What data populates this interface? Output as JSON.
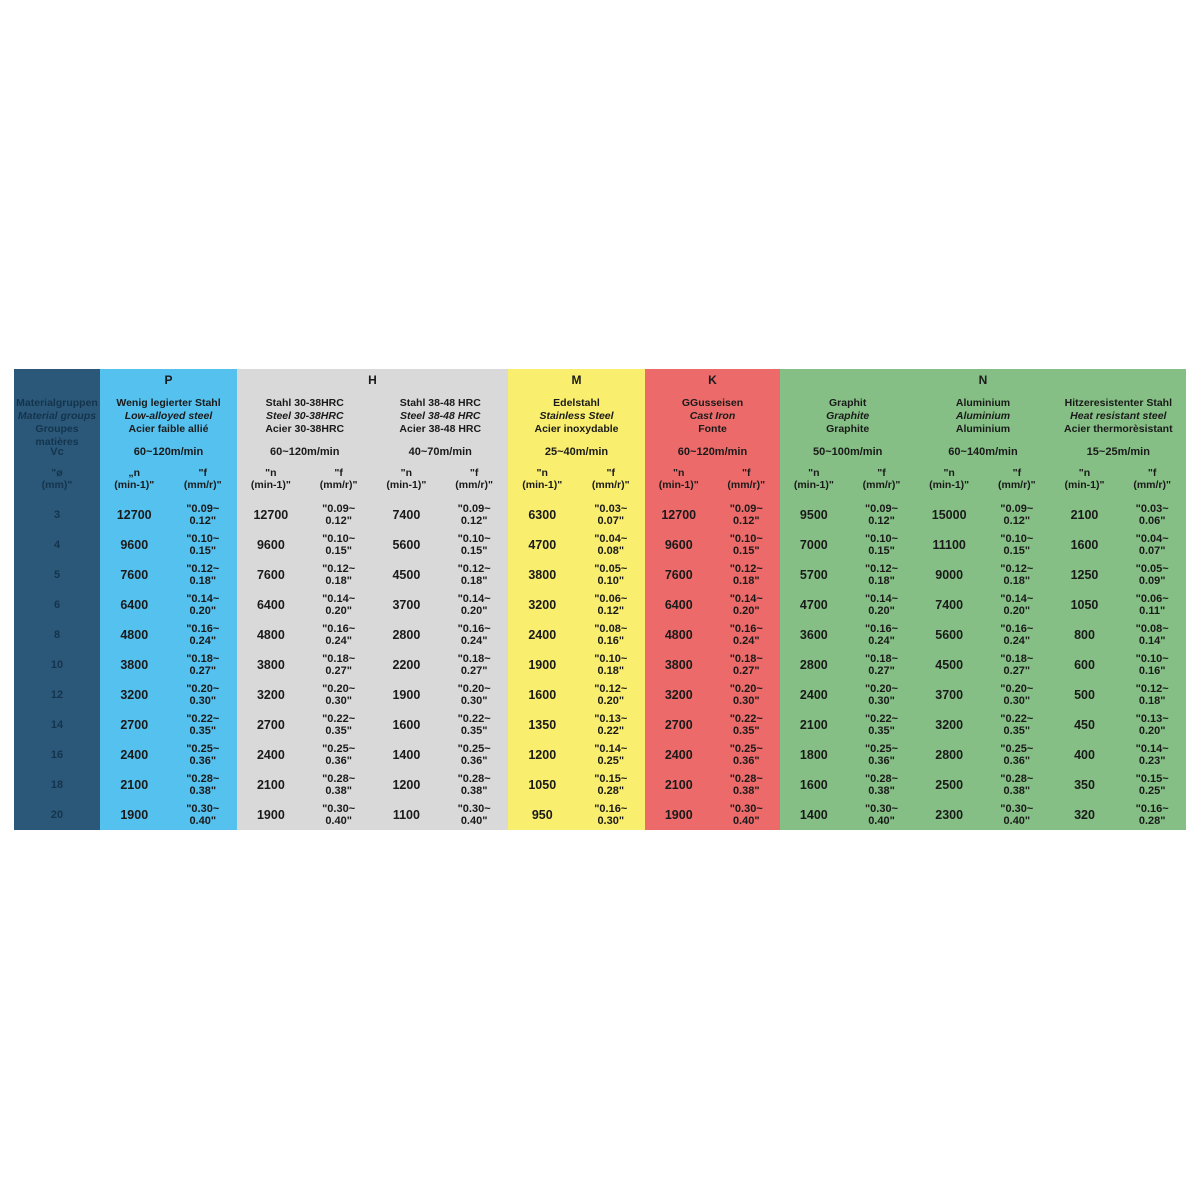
{
  "colors": {
    "navy": "#2b5878",
    "navy_text": "#14344e",
    "blue": "#55c1ef",
    "gray": "#d9d9d9",
    "yellow": "#f9ee6d",
    "red": "#ec6a6a",
    "green": "#85bf85",
    "text": "#1a1a1a"
  },
  "corner": {
    "title_lines": [
      "Materialgruppen",
      "Material groups",
      "Groupes matières"
    ],
    "vc_label": "Vc",
    "diameter_header_line1": "\"ø",
    "diameter_header_line2": "(mm)\"",
    "diameters": [
      "3",
      "4",
      "5",
      "6",
      "8",
      "10",
      "12",
      "14",
      "16",
      "18",
      "20"
    ]
  },
  "groups": [
    {
      "letter": "P",
      "bg": "#55c1ef",
      "materials": [
        {
          "names": [
            "Wenig legierter Stahl",
            "Low-alloyed steel",
            "Acier faible allié"
          ],
          "vc": "60~120m/min",
          "n_header": [
            "„n",
            "(min-1)\""
          ],
          "f_header": [
            "\"f",
            "(mm/r)\""
          ],
          "n": [
            "12700",
            "9600",
            "7600",
            "6400",
            "4800",
            "3800",
            "3200",
            "2700",
            "2400",
            "2100",
            "1900"
          ],
          "f": [
            [
              "\"0.09~",
              "0.12\""
            ],
            [
              "\"0.10~",
              "0.15\""
            ],
            [
              "\"0.12~",
              "0.18\""
            ],
            [
              "\"0.14~",
              "0.20\""
            ],
            [
              "\"0.16~",
              "0.24\""
            ],
            [
              "\"0.18~",
              "0.27\""
            ],
            [
              "\"0.20~",
              "0.30\""
            ],
            [
              "\"0.22~",
              "0.35\""
            ],
            [
              "\"0.25~",
              "0.36\""
            ],
            [
              "\"0.28~",
              "0.38\""
            ],
            [
              "\"0.30~",
              "0.40\""
            ]
          ]
        }
      ]
    },
    {
      "letter": "H",
      "bg": "#d9d9d9",
      "materials": [
        {
          "names": [
            "Stahl 30-38HRC",
            "Steel 30-38HRC",
            "Acier 30-38HRC"
          ],
          "vc": "60~120m/min",
          "n_header": [
            "\"n",
            "(min-1)\""
          ],
          "f_header": [
            "\"f",
            "(mm/r)\""
          ],
          "n": [
            "12700",
            "9600",
            "7600",
            "6400",
            "4800",
            "3800",
            "3200",
            "2700",
            "2400",
            "2100",
            "1900"
          ],
          "f": [
            [
              "\"0.09~",
              "0.12\""
            ],
            [
              "\"0.10~",
              "0.15\""
            ],
            [
              "\"0.12~",
              "0.18\""
            ],
            [
              "\"0.14~",
              "0.20\""
            ],
            [
              "\"0.16~",
              "0.24\""
            ],
            [
              "\"0.18~",
              "0.27\""
            ],
            [
              "\"0.20~",
              "0.30\""
            ],
            [
              "\"0.22~",
              "0.35\""
            ],
            [
              "\"0.25~",
              "0.36\""
            ],
            [
              "\"0.28~",
              "0.38\""
            ],
            [
              "\"0.30~",
              "0.40\""
            ]
          ]
        },
        {
          "names": [
            "Stahl 38-48 HRC",
            "Steel 38-48 HRC",
            "Acier 38-48 HRC"
          ],
          "vc": "40~70m/min",
          "n_header": [
            "\"n",
            "(min-1)\""
          ],
          "f_header": [
            "\"f",
            "(mm/r)\""
          ],
          "n": [
            "7400",
            "5600",
            "4500",
            "3700",
            "2800",
            "2200",
            "1900",
            "1600",
            "1400",
            "1200",
            "1100"
          ],
          "f": [
            [
              "\"0.09~",
              "0.12\""
            ],
            [
              "\"0.10~",
              "0.15\""
            ],
            [
              "\"0.12~",
              "0.18\""
            ],
            [
              "\"0.14~",
              "0.20\""
            ],
            [
              "\"0.16~",
              "0.24\""
            ],
            [
              "\"0.18~",
              "0.27\""
            ],
            [
              "\"0.20~",
              "0.30\""
            ],
            [
              "\"0.22~",
              "0.35\""
            ],
            [
              "\"0.25~",
              "0.36\""
            ],
            [
              "\"0.28~",
              "0.38\""
            ],
            [
              "\"0.30~",
              "0.40\""
            ]
          ]
        }
      ]
    },
    {
      "letter": "M",
      "bg": "#f9ee6d",
      "materials": [
        {
          "names": [
            "Edelstahl",
            "Stainless Steel",
            "Acier inoxydable"
          ],
          "vc": "25~40m/min",
          "n_header": [
            "\"n",
            "(min-1)\""
          ],
          "f_header": [
            "\"f",
            "(mm/r)\""
          ],
          "n": [
            "6300",
            "4700",
            "3800",
            "3200",
            "2400",
            "1900",
            "1600",
            "1350",
            "1200",
            "1050",
            "950"
          ],
          "f": [
            [
              "\"0.03~",
              "0.07\""
            ],
            [
              "\"0.04~",
              "0.08\""
            ],
            [
              "\"0.05~",
              "0.10\""
            ],
            [
              "\"0.06~",
              "0.12\""
            ],
            [
              "\"0.08~",
              "0.16\""
            ],
            [
              "\"0.10~",
              "0.18\""
            ],
            [
              "\"0.12~",
              "0.20\""
            ],
            [
              "\"0.13~",
              "0.22\""
            ],
            [
              "\"0.14~",
              "0.25\""
            ],
            [
              "\"0.15~",
              "0.28\""
            ],
            [
              "\"0.16~",
              "0.30\""
            ]
          ]
        }
      ]
    },
    {
      "letter": "K",
      "bg": "#ec6a6a",
      "materials": [
        {
          "names": [
            "GGusseisen",
            "Cast Iron",
            "Fonte"
          ],
          "vc": "60~120m/min",
          "n_header": [
            "\"n",
            "(min-1)\""
          ],
          "f_header": [
            "\"f",
            "(mm/r)\""
          ],
          "n": [
            "12700",
            "9600",
            "7600",
            "6400",
            "4800",
            "3800",
            "3200",
            "2700",
            "2400",
            "2100",
            "1900"
          ],
          "f": [
            [
              "\"0.09~",
              "0.12\""
            ],
            [
              "\"0.10~",
              "0.15\""
            ],
            [
              "\"0.12~",
              "0.18\""
            ],
            [
              "\"0.14~",
              "0.20\""
            ],
            [
              "\"0.16~",
              "0.24\""
            ],
            [
              "\"0.18~",
              "0.27\""
            ],
            [
              "\"0.20~",
              "0.30\""
            ],
            [
              "\"0.22~",
              "0.35\""
            ],
            [
              "\"0.25~",
              "0.36\""
            ],
            [
              "\"0.28~",
              "0.38\""
            ],
            [
              "\"0.30~",
              "0.40\""
            ]
          ]
        }
      ]
    },
    {
      "letter": "N",
      "bg": "#85bf85",
      "materials": [
        {
          "names": [
            "Graphit",
            "Graphite",
            "Graphite"
          ],
          "vc": "50~100m/min",
          "n_header": [
            "\"n",
            "(min-1)\""
          ],
          "f_header": [
            "\"f",
            "(mm/r)\""
          ],
          "n": [
            "9500",
            "7000",
            "5700",
            "4700",
            "3600",
            "2800",
            "2400",
            "2100",
            "1800",
            "1600",
            "1400"
          ],
          "f": [
            [
              "\"0.09~",
              "0.12\""
            ],
            [
              "\"0.10~",
              "0.15\""
            ],
            [
              "\"0.12~",
              "0.18\""
            ],
            [
              "\"0.14~",
              "0.20\""
            ],
            [
              "\"0.16~",
              "0.24\""
            ],
            [
              "\"0.18~",
              "0.27\""
            ],
            [
              "\"0.20~",
              "0.30\""
            ],
            [
              "\"0.22~",
              "0.35\""
            ],
            [
              "\"0.25~",
              "0.36\""
            ],
            [
              "\"0.28~",
              "0.38\""
            ],
            [
              "\"0.30~",
              "0.40\""
            ]
          ]
        },
        {
          "names": [
            "Aluminium",
            "Aluminium",
            "Aluminium"
          ],
          "vc": "60~140m/min",
          "n_header": [
            "\"n",
            "(min-1)\""
          ],
          "f_header": [
            "\"f",
            "(mm/r)\""
          ],
          "n": [
            "15000",
            "11100",
            "9000",
            "7400",
            "5600",
            "4500",
            "3700",
            "3200",
            "2800",
            "2500",
            "2300"
          ],
          "f": [
            [
              "\"0.09~",
              "0.12\""
            ],
            [
              "\"0.10~",
              "0.15\""
            ],
            [
              "\"0.12~",
              "0.18\""
            ],
            [
              "\"0.14~",
              "0.20\""
            ],
            [
              "\"0.16~",
              "0.24\""
            ],
            [
              "\"0.18~",
              "0.27\""
            ],
            [
              "\"0.20~",
              "0.30\""
            ],
            [
              "\"0.22~",
              "0.35\""
            ],
            [
              "\"0.25~",
              "0.36\""
            ],
            [
              "\"0.28~",
              "0.38\""
            ],
            [
              "\"0.30~",
              "0.40\""
            ]
          ]
        },
        {
          "names": [
            "Hitzeresistenter Stahl",
            "Heat resistant steel",
            "Acier thermorèsistant"
          ],
          "vc": "15~25m/min",
          "n_header": [
            "\"n",
            "(min-1)\""
          ],
          "f_header": [
            "\"f",
            "(mm/r)\""
          ],
          "n": [
            "2100",
            "1600",
            "1250",
            "1050",
            "800",
            "600",
            "500",
            "450",
            "400",
            "350",
            "320"
          ],
          "f": [
            [
              "\"0.03~",
              "0.06\""
            ],
            [
              "\"0.04~",
              "0.07\""
            ],
            [
              "\"0.05~",
              "0.09\""
            ],
            [
              "\"0.06~",
              "0.11\""
            ],
            [
              "\"0.08~",
              "0.14\""
            ],
            [
              "\"0.10~",
              "0.16\""
            ],
            [
              "\"0.12~",
              "0.18\""
            ],
            [
              "\"0.13~",
              "0.20\""
            ],
            [
              "\"0.14~",
              "0.23\""
            ],
            [
              "\"0.15~",
              "0.25\""
            ],
            [
              "\"0.16~",
              "0.28\""
            ]
          ]
        }
      ]
    }
  ]
}
